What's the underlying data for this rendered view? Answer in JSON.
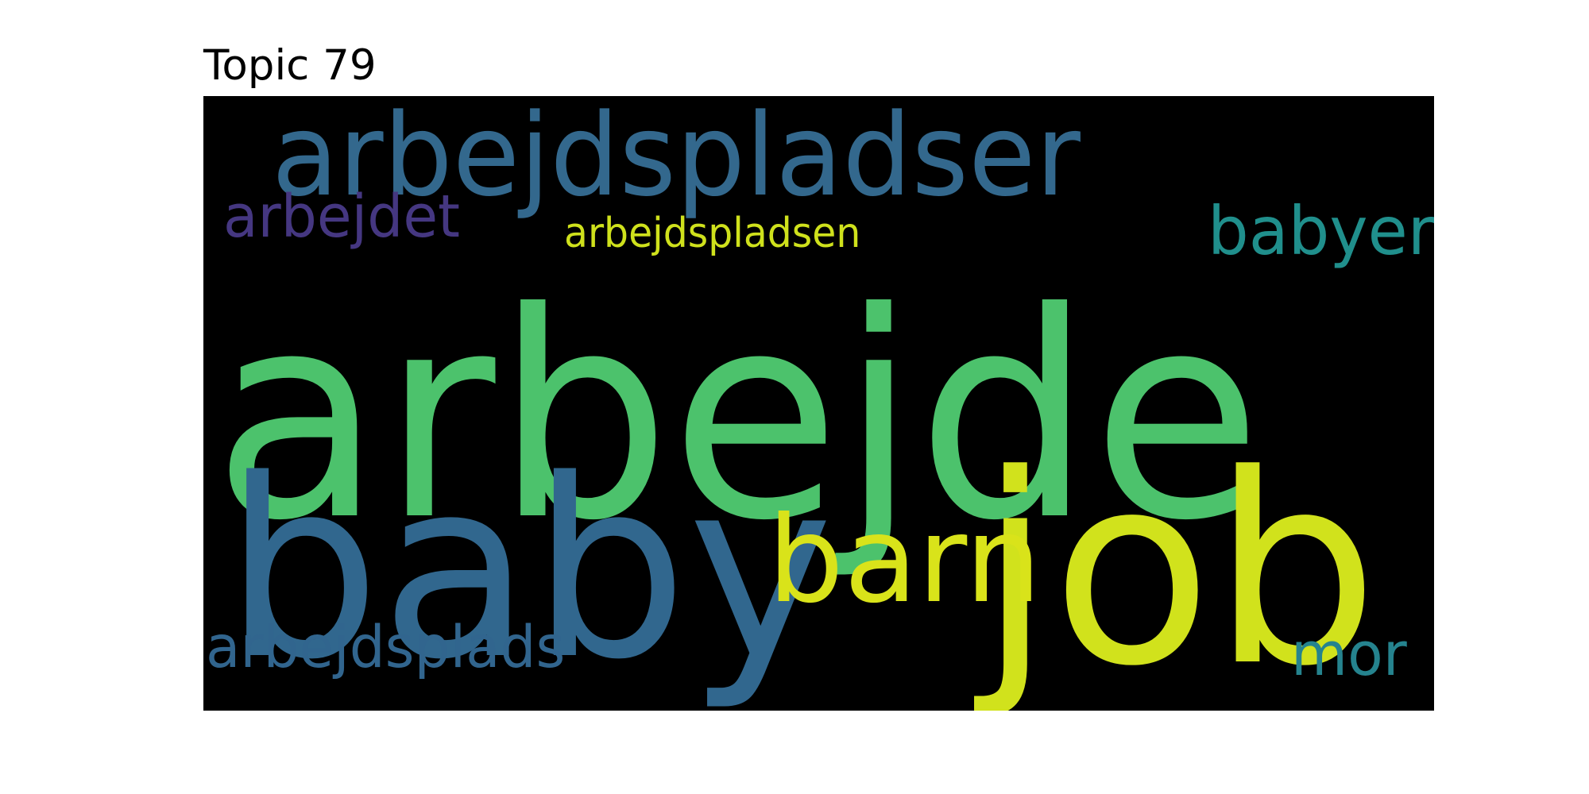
{
  "title": "Topic 79",
  "words": [
    {
      "text": "arbejde",
      "color": "#4cc26c"
    },
    {
      "text": "baby",
      "color": "#31678e"
    },
    {
      "text": "job",
      "color": "#d1e21c"
    },
    {
      "text": "arbejdspladser",
      "color": "#33688d"
    },
    {
      "text": "barn",
      "color": "#d9e31a"
    },
    {
      "text": "babyer",
      "color": "#208f8c"
    },
    {
      "text": "arbejdet",
      "color": "#453781"
    },
    {
      "text": "arbejdspladsen",
      "color": "#cfe11c"
    },
    {
      "text": "arbejdsplads",
      "color": "#31658e"
    },
    {
      "text": "mor",
      "color": "#25838e"
    }
  ]
}
